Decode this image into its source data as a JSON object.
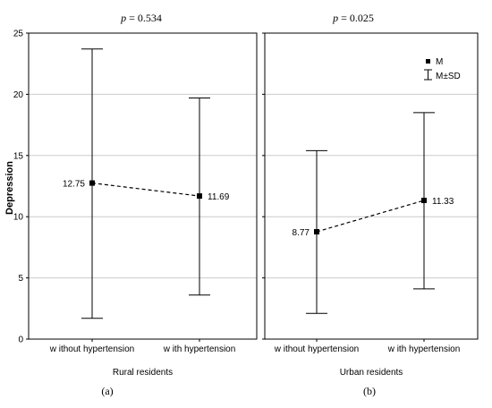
{
  "figure": {
    "y_axis_label": "Depression",
    "legend": {
      "mean_label": "M",
      "sd_label": "M±SD",
      "placement": "top-right of panel (b)"
    }
  },
  "chart_data": [
    {
      "type": "line",
      "panel_label": "(a)",
      "p_label_symbol": "p",
      "p_label_value": "= 0.534",
      "xlabel": "Rural residents",
      "ylabel": "Depression",
      "ylim": [
        0,
        25
      ],
      "yticks": [
        "0",
        "5",
        "10",
        "15",
        "20",
        "25"
      ],
      "grid": true,
      "categories": [
        "w ithout hypertension",
        "w ith hypertension"
      ],
      "series": [
        {
          "mean": [
            12.75,
            11.69
          ],
          "mean_labels": [
            "12.75",
            "11.69"
          ],
          "sd_lower": [
            1.7,
            3.6
          ],
          "sd_upper": [
            23.7,
            19.7
          ]
        }
      ]
    },
    {
      "type": "line",
      "panel_label": "(b)",
      "p_label_symbol": "p",
      "p_label_value": "= 0.025",
      "xlabel": "Urban residents",
      "ylabel": "",
      "ylim": [
        0,
        25
      ],
      "yticks": [
        "0",
        "5",
        "10",
        "15",
        "20",
        "25"
      ],
      "grid": true,
      "categories": [
        "w ithout hypertension",
        "w ith hypertension"
      ],
      "series": [
        {
          "mean": [
            8.77,
            11.33
          ],
          "mean_labels": [
            "8.77",
            "11.33"
          ],
          "sd_lower": [
            2.1,
            4.1
          ],
          "sd_upper": [
            15.4,
            18.5
          ]
        }
      ]
    }
  ]
}
